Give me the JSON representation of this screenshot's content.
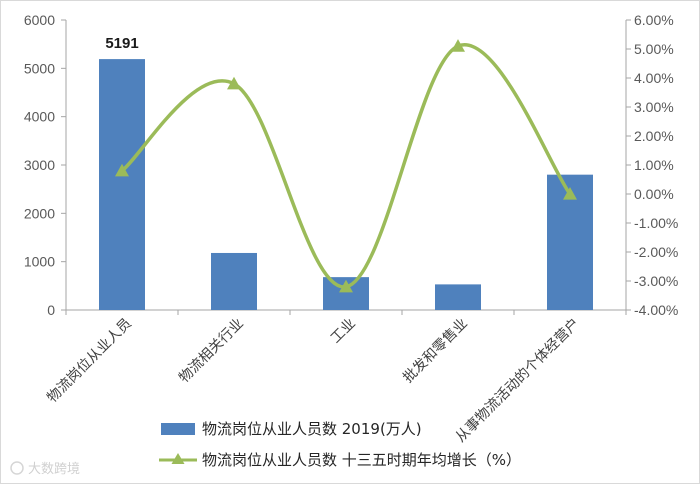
{
  "chart_data": {
    "type": "bar+line",
    "categories": [
      "物流岗位从业人员",
      "物流相关行业",
      "工业",
      "批发和零售业",
      "从事物流活动的个体经营户"
    ],
    "series": [
      {
        "name": "物流岗位从业人员数 2019(万人)",
        "type": "bar",
        "axis": "left",
        "values": [
          5191,
          1180,
          680,
          530,
          2800
        ],
        "color": "#4f81bd"
      },
      {
        "name": "物流岗位从业人员数 十三五时期年均增长（%）",
        "type": "line",
        "axis": "right",
        "values": [
          0.8,
          3.8,
          -3.2,
          5.1,
          0.0
        ],
        "color": "#9bbb59"
      }
    ],
    "data_labels": [
      {
        "category_index": 0,
        "text": "5191"
      }
    ],
    "left_axis": {
      "ylim": [
        0,
        6000
      ],
      "ticks": [
        "0",
        "1000",
        "2000",
        "3000",
        "4000",
        "5000",
        "6000"
      ]
    },
    "right_axis": {
      "ylim": [
        -4,
        6
      ],
      "ticks": [
        "-4.00%",
        "-3.00%",
        "-2.00%",
        "-1.00%",
        "0.00%",
        "1.00%",
        "2.00%",
        "3.00%",
        "4.00%",
        "5.00%",
        "6.00%"
      ]
    },
    "legend": {
      "position": "bottom"
    },
    "grid": false
  },
  "watermark": {
    "text": "大数跨境"
  }
}
